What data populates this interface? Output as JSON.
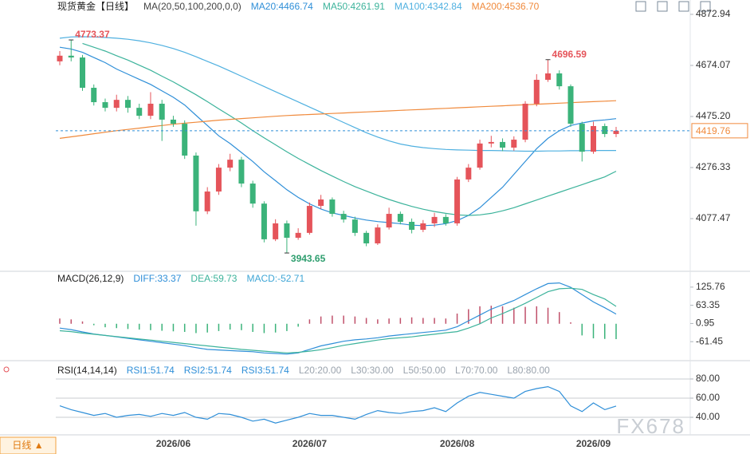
{
  "chart_data": [
    {
      "type": "candlestick",
      "title": "现货黄金【日线】",
      "indicator": "MA(20,50,100,200,0,0)",
      "up_color": "#e5545a",
      "down_color": "#3bb37a",
      "categories": [
        null,
        null,
        null,
        null,
        null,
        null,
        null,
        null,
        null,
        null,
        "2026/06",
        null,
        null,
        null,
        null,
        null,
        null,
        null,
        null,
        null,
        null,
        null,
        "2026/07",
        null,
        null,
        null,
        null,
        null,
        null,
        null,
        null,
        null,
        null,
        null,
        null,
        "2026/08",
        null,
        null,
        null,
        null,
        null,
        null,
        null,
        null,
        null,
        null,
        null,
        "2026/09",
        null,
        null
      ],
      "open": [
        4690,
        4712,
        4705,
        4587,
        4531,
        4509,
        4540,
        4509,
        4478,
        4525,
        4463,
        4447,
        4323,
        4106,
        4183,
        4276,
        4307,
        4214,
        4136,
        3997,
        4059,
        4003,
        4022,
        4127,
        4152,
        4096,
        4074,
        4022,
        3981,
        4043,
        4096,
        4065,
        4034,
        4059,
        4084,
        4059,
        4230,
        4276,
        4370,
        4376,
        4354,
        4385,
        4525,
        4618,
        4643,
        4593,
        4447,
        4338,
        4438,
        4407
      ],
      "high": [
        4730,
        4773.37,
        4715,
        4600,
        4545,
        4560,
        4555,
        4525,
        4570,
        4540,
        4478,
        4460,
        4335,
        4200,
        4290,
        4330,
        4318,
        4225,
        4145,
        4075,
        4070,
        4040,
        4140,
        4170,
        4160,
        4108,
        4085,
        4030,
        4055,
        4120,
        4105,
        4078,
        4072,
        4100,
        4095,
        4240,
        4290,
        4385,
        4400,
        4390,
        4398,
        4535,
        4640,
        4696.59,
        4655,
        4600,
        4455,
        4455,
        4448,
        4435
      ],
      "low": [
        4675,
        4690,
        4575,
        4518,
        4495,
        4495,
        4490,
        4465,
        4465,
        4380,
        4435,
        4310,
        4050,
        4095,
        4170,
        4262,
        4200,
        4120,
        3985,
        3990,
        3943.65,
        3995,
        4015,
        4115,
        4085,
        4062,
        4010,
        3970,
        3975,
        4035,
        4055,
        4020,
        4025,
        4045,
        4050,
        4050,
        4220,
        4268,
        4355,
        4340,
        4342,
        4375,
        4515,
        4610,
        4580,
        4435,
        4300,
        4330,
        4395,
        4395
      ],
      "close": [
        4712,
        4705,
        4587,
        4531,
        4509,
        4540,
        4509,
        4478,
        4525,
        4463,
        4447,
        4323,
        4106,
        4183,
        4276,
        4307,
        4214,
        4136,
        3997,
        4059,
        4003,
        4022,
        4127,
        4152,
        4096,
        4074,
        4022,
        3981,
        4043,
        4096,
        4065,
        4034,
        4059,
        4084,
        4059,
        4230,
        4276,
        4370,
        4376,
        4354,
        4385,
        4525,
        4618,
        4643,
        4593,
        4447,
        4338,
        4438,
        4407,
        4419.76
      ],
      "ylim": [
        3878.6,
        4928.9
      ],
      "yticks": [
        4872.94,
        4674.07,
        {
          "value": 4475.2,
          "label": "4475.20"
        },
        4276.33,
        4077.47
      ],
      "series": [
        {
          "name": "MA20:4466.74",
          "color": "#2f8fd8",
          "values": [
            4745,
            4738,
            4725,
            4705,
            4685,
            4660,
            4640,
            4620,
            4600,
            4575,
            4550,
            4520,
            4480,
            4440,
            4400,
            4370,
            4335,
            4300,
            4260,
            4225,
            4190,
            4160,
            4135,
            4115,
            4100,
            4090,
            4080,
            4072,
            4066,
            4062,
            4058,
            4052,
            4050,
            4052,
            4058,
            4070,
            4090,
            4120,
            4160,
            4200,
            4250,
            4300,
            4350,
            4390,
            4420,
            4440,
            4450,
            4458,
            4462,
            4466.74
          ]
        },
        {
          "name": "MA50:4261.91",
          "color": "#3cb39b",
          "values": [
            null,
            null,
            4760,
            4745,
            4730,
            4712,
            4695,
            4675,
            4655,
            4632,
            4610,
            4585,
            4560,
            4533,
            4505,
            4478,
            4450,
            4420,
            4392,
            4365,
            4338,
            4312,
            4288,
            4265,
            4243,
            4222,
            4202,
            4185,
            4168,
            4152,
            4138,
            4125,
            4114,
            4105,
            4098,
            4092,
            4090,
            4092,
            4098,
            4108,
            4120,
            4135,
            4150,
            4165,
            4180,
            4195,
            4210,
            4225,
            4240,
            4261.91
          ]
        },
        {
          "name": "MA100:4342.84",
          "color": "#4fb0e0",
          "values": [
            4780,
            4785,
            4786,
            4785,
            4783,
            4780,
            4776,
            4770,
            4762,
            4752,
            4740,
            4725,
            4708,
            4690,
            4672,
            4652,
            4632,
            4612,
            4592,
            4572,
            4552,
            4532,
            4512,
            4492,
            4472,
            4452,
            4432,
            4412,
            4395,
            4380,
            4368,
            4360,
            4354,
            4350,
            4347,
            4345,
            4344,
            4343,
            4343,
            4342,
            4341,
            4340,
            4340,
            4341,
            4341,
            4342,
            4342,
            4343,
            4343,
            4342.84
          ]
        },
        {
          "name": "MA200:4536.70",
          "color": "#f08a3c",
          "values": [
            4390,
            4396,
            4402,
            4408,
            4414,
            4420,
            4425,
            4430,
            4435,
            4440,
            4445,
            4449,
            4453,
            4457,
            4461,
            4464,
            4467,
            4470,
            4473,
            4476,
            4479,
            4481,
            4483,
            4485,
            4487,
            4489,
            4491,
            4493,
            4495,
            4497,
            4499,
            4501,
            4503,
            4505,
            4507,
            4509,
            4511,
            4513,
            4515,
            4517,
            4519,
            4521,
            4523,
            4525,
            4527,
            4529,
            4531,
            4533,
            4535,
            4536.7
          ]
        }
      ]
    },
    {
      "type": "macd",
      "title": "MACD(26,12,9)",
      "legend": [
        "DIFF:33.37",
        "DEA:59.73",
        "MACD:-52.71"
      ],
      "ylim": [
        -121.1,
        174.6
      ],
      "yticks": [
        125.76,
        63.35,
        0.95,
        -61.45
      ],
      "values": [
        18,
        15,
        8,
        -5,
        -12,
        -15,
        -18,
        -20,
        -22,
        -24,
        -26,
        -28,
        -32,
        -30,
        -25,
        -20,
        -22,
        -28,
        -32,
        -30,
        -25,
        -10,
        15,
        25,
        28,
        28,
        25,
        20,
        15,
        18,
        20,
        22,
        20,
        20,
        18,
        35,
        50,
        60,
        62,
        60,
        55,
        58,
        60,
        55,
        40,
        5,
        -40,
        -50,
        -52,
        -52.71
      ],
      "series": [
        {
          "name": "DIFF",
          "color": "#2f8fd8",
          "values": [
            -15,
            -20,
            -28,
            -35,
            -40,
            -45,
            -50,
            -55,
            -60,
            -65,
            -70,
            -75,
            -82,
            -88,
            -90,
            -92,
            -94,
            -96,
            -100,
            -102,
            -104,
            -100,
            -88,
            -76,
            -68,
            -60,
            -55,
            -52,
            -48,
            -42,
            -38,
            -34,
            -30,
            -26,
            -22,
            -10,
            10,
            30,
            50,
            65,
            80,
            100,
            120,
            138,
            140,
            125,
            100,
            75,
            55,
            33.37
          ]
        },
        {
          "name": "DEA",
          "color": "#3cb39b",
          "values": [
            -24,
            -27,
            -32,
            -36,
            -40,
            -44,
            -48,
            -52,
            -56,
            -60,
            -64,
            -68,
            -72,
            -76,
            -80,
            -84,
            -88,
            -91,
            -94,
            -97,
            -100,
            -98,
            -94,
            -89,
            -82,
            -74,
            -68,
            -62,
            -56,
            -51,
            -48,
            -45,
            -40,
            -36,
            -31,
            -27,
            -15,
            0,
            20,
            35,
            52,
            70,
            90,
            110,
            120,
            122,
            118,
            100,
            85,
            59.73
          ]
        }
      ]
    },
    {
      "type": "line",
      "title": "RSI(14,14,14)",
      "legend": [
        "RSI1:51.74",
        "RSI2:51.74",
        "RSI3:51.74",
        "L20:20.00",
        "L30:30.00",
        "L50:50.00",
        "L70:70.00",
        "L80:80.00"
      ],
      "ylim": [
        21.7,
        90.8
      ],
      "grid": true,
      "yticks": [
        {
          "value": 80,
          "label": "80.00"
        },
        {
          "value": 60,
          "label": "60.00"
        },
        {
          "value": 40,
          "label": "40.00"
        }
      ],
      "series": [
        {
          "name": "RSI1",
          "color": "#2f8fd8",
          "values": [
            52,
            48,
            45,
            42,
            44,
            40,
            42,
            43,
            41,
            44,
            42,
            45,
            40,
            38,
            44,
            43,
            40,
            36,
            38,
            34,
            37,
            40,
            44,
            42,
            42,
            40,
            38,
            43,
            47,
            45,
            44,
            46,
            47,
            50,
            46,
            55,
            62,
            66,
            64,
            62,
            60,
            67,
            70,
            72,
            67,
            52,
            46,
            55,
            48,
            51.74
          ]
        }
      ]
    }
  ],
  "ui": {
    "period_button": "日线 ▲",
    "watermark": "FX678"
  }
}
